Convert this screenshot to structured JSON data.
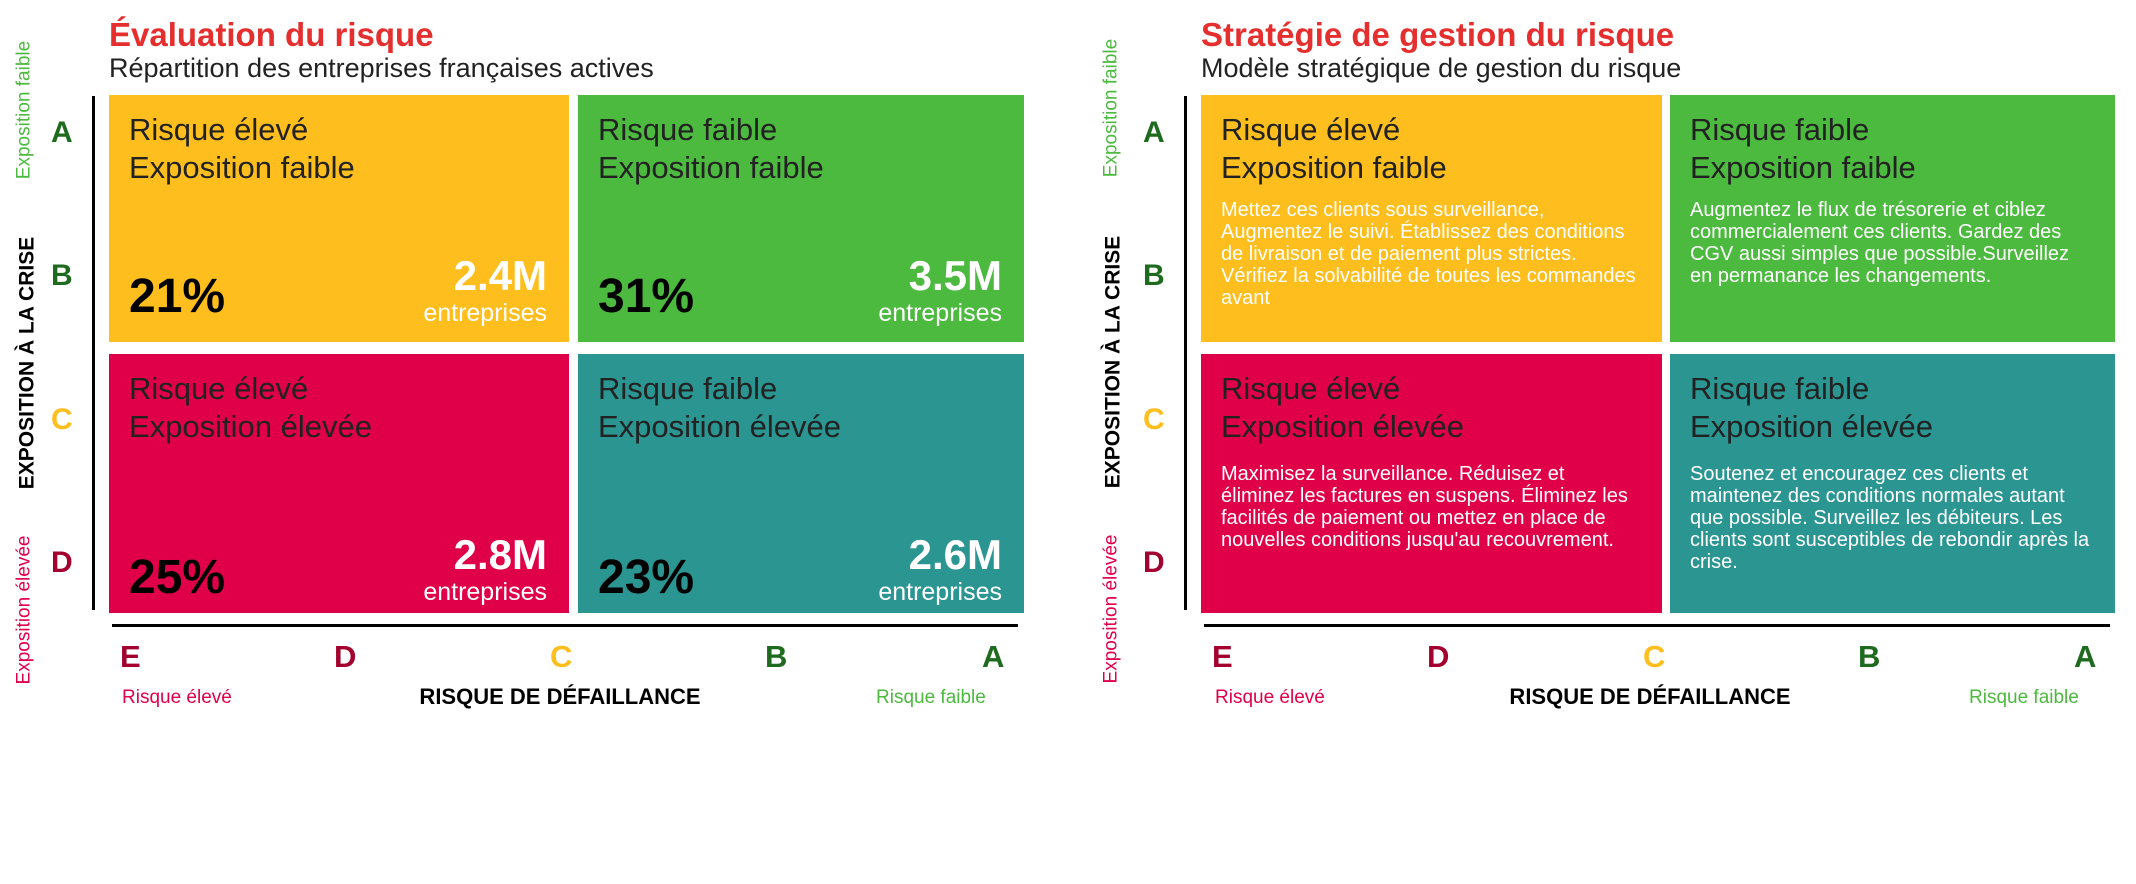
{
  "colors": {
    "yellow": "#FDBE1E",
    "green": "#4CB93F",
    "red": "#E0004A",
    "teal": "#2A9591",
    "title_red": "#E52E2E",
    "dark_green": "#1E6A1E",
    "dark_red": "#A3002F",
    "label_green": "#4CB93F",
    "label_red": "#E0004A"
  },
  "left": {
    "title": "Évaluation du risque",
    "subtitle": "Répartition des entreprises françaises actives",
    "quadrants": {
      "tl": {
        "line1": "Risque élevé",
        "line2": "Exposition faible",
        "percent": "21%",
        "count": "2.4M",
        "unit": "entreprises"
      },
      "tr": {
        "line1": "Risque faible",
        "line2": "Exposition faible",
        "percent": "31%",
        "count": "3.5M",
        "unit": "entreprises"
      },
      "bl": {
        "line1": "Risque élevé",
        "line2": "Exposition élevée",
        "percent": "25%",
        "count": "2.8M",
        "unit": "entreprises"
      },
      "br": {
        "line1": "Risque faible",
        "line2": "Exposition élevée",
        "percent": "23%",
        "count": "2.6M",
        "unit": "entreprises"
      }
    }
  },
  "right": {
    "title": "Stratégie de gestion du risque",
    "subtitle": "Modèle stratégique de gestion du risque",
    "quadrants": {
      "tl": {
        "line1": "Risque élevé",
        "line2": "Exposition faible",
        "text": "Mettez ces clients sous surveillance, Augmentez le suivi. Établissez des conditions de livraison et de paiement plus strictes. Vérifiez la solvabilité de toutes les commandes avant"
      },
      "tr": {
        "line1": "Risque faible",
        "line2": "Exposition faible",
        "text": "Augmentez le flux de trésorerie et ciblez commercialement ces clients. Gardez des CGV aussi simples que possible.Surveillez en permanance les changements."
      },
      "bl": {
        "line1": "Risque élevé",
        "line2": "Exposition élevée",
        "text": "Maximisez la surveillance. Réduisez et éliminez les factures en suspens. Éliminez les facilités de paiement ou mettez en place de nouvelles conditions jusqu'au recouvrement."
      },
      "br": {
        "line1": "Risque faible",
        "line2": "Exposition élevée",
        "text": "Soutenez et encouragez ces clients et maintenez des conditions normales autant que possible. Surveillez les débiteurs. Les clients sont susceptibles de rebondir après la crise."
      }
    }
  },
  "y_axis": {
    "title": "EXPOSITION À LA CRISE",
    "top_label": "Exposition faible",
    "bottom_label": "Exposition élevée",
    "rows": [
      "A",
      "B",
      "C",
      "D"
    ]
  },
  "x_axis": {
    "title": "RISQUE DE DÉFAILLANCE",
    "left_label": "Risque élevé",
    "right_label": "Risque faible",
    "columns": [
      "E",
      "D",
      "C",
      "B",
      "A"
    ]
  }
}
